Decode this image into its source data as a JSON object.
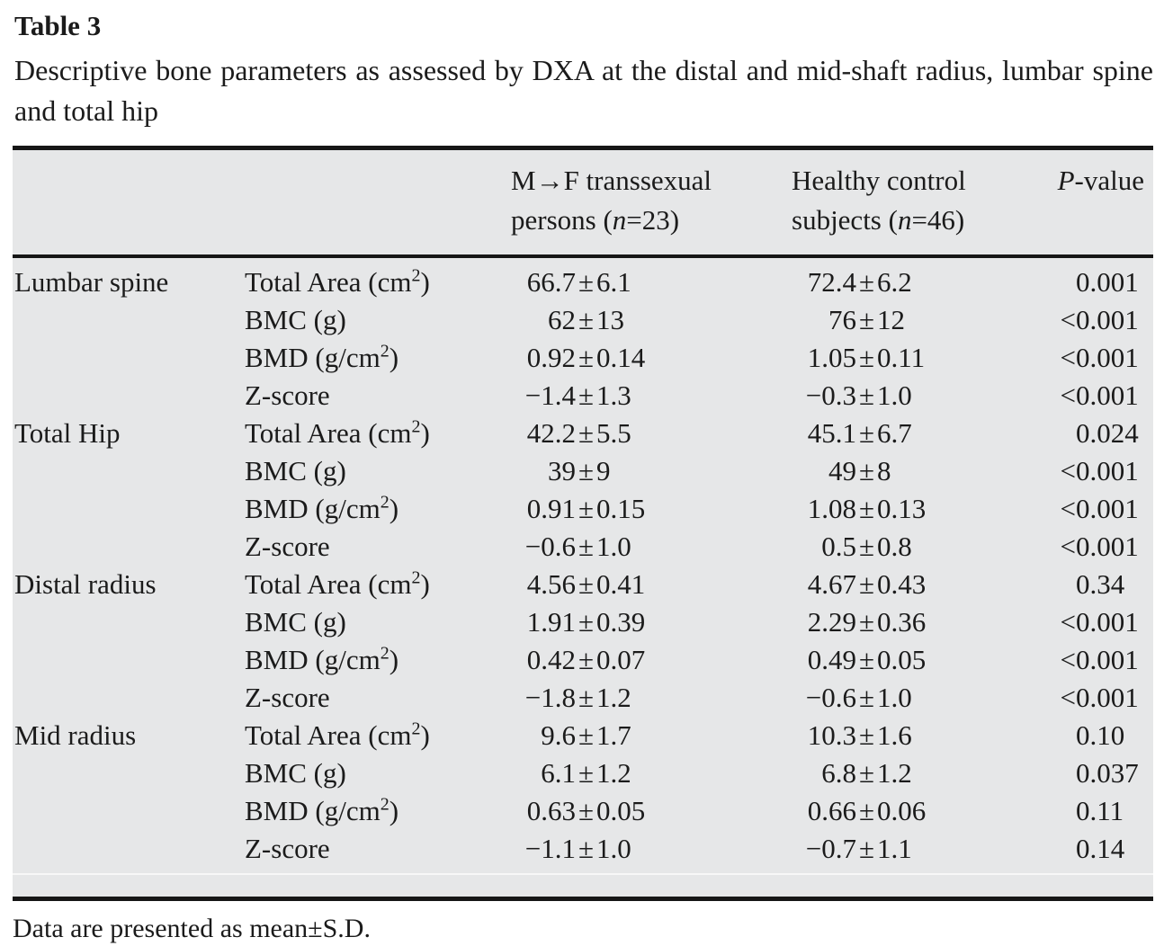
{
  "page_title": "Table 3",
  "caption": "Descriptive bone parameters as assessed by DXA at the distal and mid-shaft radius, lumbar spine and total hip",
  "footnote": "Data are presented as mean±S.D.",
  "pm_sign": "±",
  "header": {
    "group1_line1": "M→F transsexual",
    "group1_line2_pre": "persons (",
    "group1_n": "n",
    "group1_line2_post": "=23)",
    "group2_line1": "Healthy control",
    "group2_line2_pre": "subjects (",
    "group2_n": "n",
    "group2_line2_post": "=46)",
    "pvalue_italic": "P",
    "pvalue_rest": "-value"
  },
  "rows": [
    {
      "site": "Lumbar spine",
      "param_pre": "Total Area (cm",
      "param_sup": "2",
      "param_post": ")",
      "g1_mean": "66.7",
      "g1_sd": "6.1",
      "g2_mean": "72.4",
      "g2_sd": "6.2",
      "p_lt": "",
      "p_val": "0.001"
    },
    {
      "site": "",
      "param_pre": "BMC (g)",
      "param_sup": "",
      "param_post": "",
      "g1_mean": "62",
      "g1_sd": "13",
      "g2_mean": "76",
      "g2_sd": "12",
      "p_lt": "<",
      "p_val": "0.001"
    },
    {
      "site": "",
      "param_pre": "BMD (g/cm",
      "param_sup": "2",
      "param_post": ")",
      "g1_mean": "0.92",
      "g1_sd": "0.14",
      "g2_mean": "1.05",
      "g2_sd": "0.11",
      "p_lt": "<",
      "p_val": "0.001"
    },
    {
      "site": "",
      "param_pre": "Z-score",
      "param_sup": "",
      "param_post": "",
      "g1_mean": "−1.4",
      "g1_sd": "1.3",
      "g2_mean": "−0.3",
      "g2_sd": "1.0",
      "p_lt": "<",
      "p_val": "0.001"
    },
    {
      "site": "Total Hip",
      "param_pre": "Total Area (cm",
      "param_sup": "2",
      "param_post": ")",
      "g1_mean": "42.2",
      "g1_sd": "5.5",
      "g2_mean": "45.1",
      "g2_sd": "6.7",
      "p_lt": "",
      "p_val": "0.024"
    },
    {
      "site": "",
      "param_pre": "BMC (g)",
      "param_sup": "",
      "param_post": "",
      "g1_mean": "39",
      "g1_sd": "9",
      "g2_mean": "49",
      "g2_sd": "8",
      "p_lt": "<",
      "p_val": "0.001"
    },
    {
      "site": "",
      "param_pre": "BMD (g/cm",
      "param_sup": "2",
      "param_post": ")",
      "g1_mean": "0.91",
      "g1_sd": "0.15",
      "g2_mean": "1.08",
      "g2_sd": "0.13",
      "p_lt": "<",
      "p_val": "0.001"
    },
    {
      "site": "",
      "param_pre": "Z-score",
      "param_sup": "",
      "param_post": "",
      "g1_mean": "−0.6",
      "g1_sd": "1.0",
      "g2_mean": "0.5",
      "g2_sd": "0.8",
      "p_lt": "<",
      "p_val": "0.001"
    },
    {
      "site": "Distal radius",
      "param_pre": "Total Area (cm",
      "param_sup": "2",
      "param_post": ")",
      "g1_mean": "4.56",
      "g1_sd": "0.41",
      "g2_mean": "4.67",
      "g2_sd": "0.43",
      "p_lt": "",
      "p_val": "0.34"
    },
    {
      "site": "",
      "param_pre": "BMC (g)",
      "param_sup": "",
      "param_post": "",
      "g1_mean": "1.91",
      "g1_sd": "0.39",
      "g2_mean": "2.29",
      "g2_sd": "0.36",
      "p_lt": "<",
      "p_val": "0.001"
    },
    {
      "site": "",
      "param_pre": "BMD (g/cm",
      "param_sup": "2",
      "param_post": ")",
      "g1_mean": "0.42",
      "g1_sd": "0.07",
      "g2_mean": "0.49",
      "g2_sd": "0.05",
      "p_lt": "<",
      "p_val": "0.001"
    },
    {
      "site": "",
      "param_pre": "Z-score",
      "param_sup": "",
      "param_post": "",
      "g1_mean": "−1.8",
      "g1_sd": "1.2",
      "g2_mean": "−0.6",
      "g2_sd": "1.0",
      "p_lt": "<",
      "p_val": "0.001"
    },
    {
      "site": "Mid radius",
      "param_pre": "Total Area (cm",
      "param_sup": "2",
      "param_post": ")",
      "g1_mean": "9.6",
      "g1_sd": "1.7",
      "g2_mean": "10.3",
      "g2_sd": "1.6",
      "p_lt": "",
      "p_val": "0.10"
    },
    {
      "site": "",
      "param_pre": "BMC (g)",
      "param_sup": "",
      "param_post": "",
      "g1_mean": "6.1",
      "g1_sd": "1.2",
      "g2_mean": "6.8",
      "g2_sd": "1.2",
      "p_lt": "",
      "p_val": "0.037"
    },
    {
      "site": "",
      "param_pre": "BMD (g/cm",
      "param_sup": "2",
      "param_post": ")",
      "g1_mean": "0.63",
      "g1_sd": "0.05",
      "g2_mean": "0.66",
      "g2_sd": "0.06",
      "p_lt": "",
      "p_val": "0.11"
    },
    {
      "site": "",
      "param_pre": "Z-score",
      "param_sup": "",
      "param_post": "",
      "g1_mean": "−1.1",
      "g1_sd": "1.0",
      "g2_mean": "−0.7",
      "g2_sd": "1.1",
      "p_lt": "",
      "p_val": "0.14"
    }
  ]
}
